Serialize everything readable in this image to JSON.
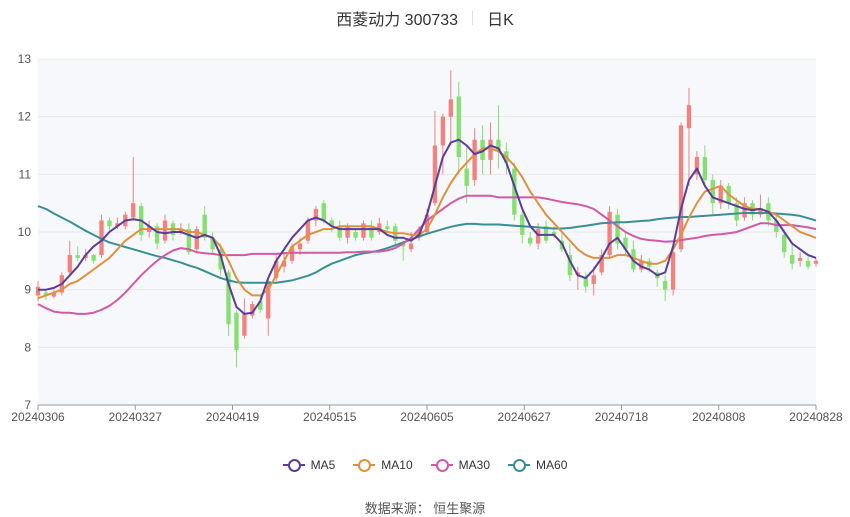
{
  "title": {
    "name": "西菱动力 300733",
    "period": "日K"
  },
  "source": "数据来源： 恒生聚源",
  "colors": {
    "up": "#f0837f",
    "down": "#86e071",
    "ma5": "#5b3d99",
    "ma10": "#e0913f",
    "ma30": "#d05aa4",
    "ma60": "#3a8f94",
    "grid": "#e8e8e8"
  },
  "chart_data": {
    "type": "candlestick",
    "ylim": [
      7,
      13
    ],
    "yticks": [
      7,
      8,
      9,
      10,
      11,
      12,
      13
    ],
    "x_tick_labels": [
      "20240306",
      "20240327",
      "20240419",
      "20240515",
      "20240605",
      "20240627",
      "20240718",
      "20240808",
      "20240828"
    ],
    "legend": [
      "MA5",
      "MA10",
      "MA30",
      "MA60"
    ],
    "candles": [
      [
        8.9,
        9.05,
        8.8,
        9.15
      ],
      [
        8.95,
        8.9,
        8.82,
        9.0
      ],
      [
        8.88,
        8.95,
        8.85,
        9.0
      ],
      [
        8.95,
        9.25,
        8.9,
        9.3
      ],
      [
        9.3,
        9.6,
        9.25,
        9.85
      ],
      [
        9.6,
        9.55,
        9.5,
        9.75
      ],
      [
        9.55,
        9.6,
        9.5,
        9.7
      ],
      [
        9.6,
        9.5,
        9.45,
        9.62
      ],
      [
        9.6,
        10.2,
        9.55,
        10.3
      ],
      [
        10.2,
        10.1,
        10.0,
        10.25
      ],
      [
        10.1,
        10.15,
        10.05,
        10.25
      ],
      [
        10.1,
        10.3,
        10.05,
        10.35
      ],
      [
        10.25,
        10.5,
        10.2,
        11.3
      ],
      [
        10.45,
        9.95,
        9.85,
        10.5
      ],
      [
        10.0,
        10.1,
        9.9,
        10.2
      ],
      [
        10.1,
        9.8,
        9.7,
        10.15
      ],
      [
        9.85,
        10.2,
        9.8,
        10.3
      ],
      [
        10.15,
        9.95,
        9.85,
        10.2
      ],
      [
        10.0,
        10.05,
        9.95,
        10.15
      ],
      [
        10.05,
        9.65,
        9.6,
        10.15
      ],
      [
        9.7,
        10.05,
        9.65,
        10.1
      ],
      [
        10.3,
        9.9,
        9.85,
        10.45
      ],
      [
        9.9,
        9.7,
        9.6,
        10.0
      ],
      [
        9.7,
        9.35,
        9.25,
        9.8
      ],
      [
        9.3,
        8.4,
        8.2,
        9.35
      ],
      [
        8.6,
        7.95,
        7.65,
        8.65
      ],
      [
        8.2,
        8.6,
        8.15,
        8.85
      ],
      [
        8.55,
        8.75,
        8.5,
        8.8
      ],
      [
        8.8,
        8.65,
        8.6,
        8.9
      ],
      [
        8.5,
        9.15,
        8.2,
        9.2
      ],
      [
        9.2,
        9.5,
        9.15,
        9.6
      ],
      [
        9.4,
        9.5,
        9.3,
        9.65
      ],
      [
        9.5,
        9.75,
        9.45,
        9.8
      ],
      [
        9.7,
        9.8,
        9.6,
        9.9
      ],
      [
        9.85,
        10.2,
        9.8,
        10.25
      ],
      [
        10.2,
        10.4,
        10.1,
        10.45
      ],
      [
        10.5,
        10.2,
        10.15,
        10.55
      ],
      [
        10.2,
        10.1,
        10.0,
        10.25
      ],
      [
        10.1,
        9.9,
        9.85,
        10.2
      ],
      [
        9.9,
        10.1,
        9.8,
        10.15
      ],
      [
        10.0,
        9.9,
        9.85,
        10.05
      ],
      [
        9.9,
        10.15,
        9.85,
        10.2
      ],
      [
        10.1,
        9.9,
        9.85,
        10.2
      ],
      [
        10.0,
        10.15,
        9.95,
        10.25
      ],
      [
        10.1,
        10.05,
        10.0,
        10.2
      ],
      [
        10.1,
        9.85,
        9.75,
        10.15
      ],
      [
        9.8,
        9.75,
        9.5,
        9.85
      ],
      [
        9.7,
        9.8,
        9.65,
        10.0
      ],
      [
        9.9,
        10.05,
        9.85,
        10.1
      ],
      [
        10.0,
        10.3,
        9.95,
        10.4
      ],
      [
        10.5,
        11.5,
        10.45,
        12.1
      ],
      [
        11.5,
        12.0,
        11.0,
        12.05
      ],
      [
        12.0,
        12.3,
        11.5,
        12.8
      ],
      [
        12.35,
        11.3,
        11.0,
        12.6
      ],
      [
        11.1,
        10.8,
        10.5,
        11.5
      ],
      [
        10.9,
        11.6,
        10.8,
        11.8
      ],
      [
        11.6,
        11.25,
        11.0,
        11.85
      ],
      [
        11.25,
        11.6,
        11.0,
        11.9
      ],
      [
        11.6,
        11.4,
        11.1,
        12.2
      ],
      [
        11.4,
        11.2,
        11.0,
        11.55
      ],
      [
        11.1,
        10.3,
        10.2,
        11.2
      ],
      [
        10.3,
        9.95,
        9.8,
        10.4
      ],
      [
        9.9,
        9.8,
        9.75,
        10.0
      ],
      [
        9.8,
        10.05,
        9.7,
        10.15
      ],
      [
        10.1,
        9.85,
        9.8,
        10.2
      ],
      [
        10.0,
        9.95,
        9.9,
        10.1
      ],
      [
        9.85,
        9.7,
        9.65,
        10.0
      ],
      [
        9.6,
        9.25,
        9.15,
        9.8
      ],
      [
        9.25,
        9.3,
        9.0,
        9.4
      ],
      [
        9.2,
        9.05,
        8.95,
        9.3
      ],
      [
        9.1,
        9.25,
        8.9,
        9.4
      ],
      [
        9.3,
        9.6,
        9.25,
        9.7
      ],
      [
        9.6,
        10.35,
        9.55,
        10.45
      ],
      [
        10.3,
        9.8,
        9.7,
        10.4
      ],
      [
        9.9,
        9.7,
        9.6,
        10.0
      ],
      [
        9.7,
        9.35,
        9.3,
        9.85
      ],
      [
        9.35,
        9.5,
        9.3,
        9.6
      ],
      [
        9.5,
        9.4,
        9.3,
        9.55
      ],
      [
        9.3,
        9.2,
        9.05,
        9.35
      ],
      [
        9.15,
        9.0,
        8.8,
        9.25
      ],
      [
        9.0,
        9.65,
        8.9,
        9.7
      ],
      [
        9.7,
        11.85,
        9.65,
        11.9
      ],
      [
        11.8,
        12.2,
        10.8,
        12.5
      ],
      [
        11.0,
        11.3,
        10.9,
        11.4
      ],
      [
        11.3,
        10.9,
        10.8,
        11.5
      ],
      [
        10.9,
        10.5,
        10.3,
        11.0
      ],
      [
        10.5,
        10.8,
        10.4,
        10.9
      ],
      [
        10.8,
        10.5,
        10.4,
        10.85
      ],
      [
        10.5,
        10.2,
        10.1,
        10.6
      ],
      [
        10.25,
        10.5,
        10.2,
        10.6
      ],
      [
        10.5,
        10.3,
        10.2,
        10.55
      ],
      [
        10.3,
        10.4,
        10.25,
        10.65
      ],
      [
        10.5,
        10.2,
        10.1,
        10.6
      ],
      [
        10.2,
        10.0,
        9.9,
        10.3
      ],
      [
        9.95,
        9.65,
        9.55,
        10.05
      ],
      [
        9.6,
        9.45,
        9.35,
        9.8
      ],
      [
        9.5,
        9.55,
        9.4,
        9.65
      ],
      [
        9.5,
        9.4,
        9.35,
        9.6
      ],
      [
        9.45,
        9.5,
        9.4,
        9.55
      ]
    ],
    "ma5": [
      9.0,
      9.0,
      9.03,
      9.1,
      9.25,
      9.4,
      9.6,
      9.75,
      9.85,
      10.0,
      10.1,
      10.2,
      10.22,
      10.2,
      10.1,
      10.0,
      9.98,
      10.0,
      10.0,
      9.95,
      9.9,
      9.95,
      9.9,
      9.6,
      9.1,
      8.7,
      8.58,
      8.6,
      8.8,
      9.2,
      9.5,
      9.7,
      9.9,
      10.05,
      10.2,
      10.25,
      10.2,
      10.1,
      10.05,
      10.05,
      10.05,
      10.05,
      10.05,
      10.05,
      9.95,
      9.9,
      9.9,
      9.85,
      9.95,
      10.3,
      10.8,
      11.3,
      11.55,
      11.6,
      11.5,
      11.35,
      11.4,
      11.5,
      11.45,
      11.2,
      10.8,
      10.4,
      10.1,
      9.95,
      9.95,
      9.95,
      9.8,
      9.5,
      9.25,
      9.2,
      9.35,
      9.55,
      9.8,
      9.9,
      9.7,
      9.5,
      9.4,
      9.35,
      9.25,
      9.3,
      9.75,
      10.4,
      10.9,
      11.1,
      10.8,
      10.6,
      10.55,
      10.5,
      10.45,
      10.4,
      10.38,
      10.4,
      10.35,
      10.2,
      10.0,
      9.8,
      9.7,
      9.6,
      9.55
    ],
    "ma10": [
      8.85,
      8.9,
      8.95,
      9.0,
      9.1,
      9.15,
      9.25,
      9.35,
      9.45,
      9.55,
      9.7,
      9.85,
      9.95,
      10.05,
      10.05,
      10.05,
      10.05,
      10.05,
      10.05,
      10.0,
      10.0,
      9.95,
      9.9,
      9.75,
      9.5,
      9.2,
      9.0,
      8.9,
      8.9,
      9.0,
      9.25,
      9.5,
      9.75,
      9.85,
      9.95,
      10.0,
      10.05,
      10.05,
      10.1,
      10.1,
      10.1,
      10.1,
      10.1,
      10.05,
      10.0,
      9.98,
      9.98,
      9.95,
      9.95,
      10.05,
      10.3,
      10.6,
      10.85,
      11.05,
      11.2,
      11.35,
      11.45,
      11.45,
      11.4,
      11.3,
      11.15,
      10.95,
      10.7,
      10.5,
      10.3,
      10.15,
      10.0,
      9.85,
      9.7,
      9.6,
      9.55,
      9.55,
      9.55,
      9.6,
      9.6,
      9.55,
      9.5,
      9.45,
      9.45,
      9.5,
      9.7,
      9.95,
      10.25,
      10.5,
      10.7,
      10.75,
      10.8,
      10.65,
      10.55,
      10.45,
      10.4,
      10.4,
      10.35,
      10.3,
      10.2,
      10.1,
      10.0,
      9.95,
      9.9
    ],
    "ma30": [
      8.75,
      8.68,
      8.62,
      8.6,
      8.6,
      8.58,
      8.58,
      8.6,
      8.65,
      8.72,
      8.82,
      8.95,
      9.1,
      9.25,
      9.38,
      9.5,
      9.6,
      9.68,
      9.72,
      9.7,
      9.65,
      9.63,
      9.62,
      9.6,
      9.6,
      9.6,
      9.6,
      9.62,
      9.62,
      9.62,
      9.62,
      9.63,
      9.64,
      9.64,
      9.64,
      9.64,
      9.64,
      9.64,
      9.64,
      9.65,
      9.65,
      9.66,
      9.66,
      9.66,
      9.68,
      9.72,
      9.8,
      9.9,
      10.05,
      10.2,
      10.3,
      10.4,
      10.5,
      10.58,
      10.63,
      10.63,
      10.63,
      10.63,
      10.6,
      10.6,
      10.6,
      10.6,
      10.6,
      10.6,
      10.58,
      10.55,
      10.52,
      10.5,
      10.48,
      10.45,
      10.4,
      10.3,
      10.2,
      10.1,
      10.0,
      9.93,
      9.88,
      9.86,
      9.85,
      9.83,
      9.84,
      9.86,
      9.88,
      9.9,
      9.93,
      9.95,
      9.96,
      9.98,
      10.0,
      10.05,
      10.1,
      10.15,
      10.15,
      10.12,
      10.12,
      10.12,
      10.1,
      10.08,
      10.05
    ],
    "ma60": [
      10.45,
      10.4,
      10.32,
      10.25,
      10.18,
      10.1,
      10.02,
      9.95,
      9.88,
      9.82,
      9.78,
      9.74,
      9.7,
      9.66,
      9.62,
      9.58,
      9.55,
      9.51,
      9.47,
      9.42,
      9.38,
      9.32,
      9.26,
      9.2,
      9.16,
      9.13,
      9.12,
      9.12,
      9.12,
      9.12,
      9.12,
      9.14,
      9.16,
      9.2,
      9.24,
      9.3,
      9.38,
      9.45,
      9.5,
      9.55,
      9.6,
      9.63,
      9.65,
      9.68,
      9.72,
      9.77,
      9.82,
      9.87,
      9.92,
      9.97,
      10.01,
      10.05,
      10.09,
      10.12,
      10.14,
      10.14,
      10.13,
      10.13,
      10.13,
      10.12,
      10.11,
      10.1,
      10.09,
      10.08,
      10.07,
      10.06,
      10.06,
      10.07,
      10.09,
      10.11,
      10.13,
      10.15,
      10.16,
      10.17,
      10.17,
      10.18,
      10.19,
      10.2,
      10.22,
      10.24,
      10.25,
      10.26,
      10.26,
      10.27,
      10.28,
      10.29,
      10.3,
      10.31,
      10.32,
      10.33,
      10.33,
      10.33,
      10.33,
      10.32,
      10.31,
      10.3,
      10.28,
      10.24,
      10.2
    ]
  }
}
